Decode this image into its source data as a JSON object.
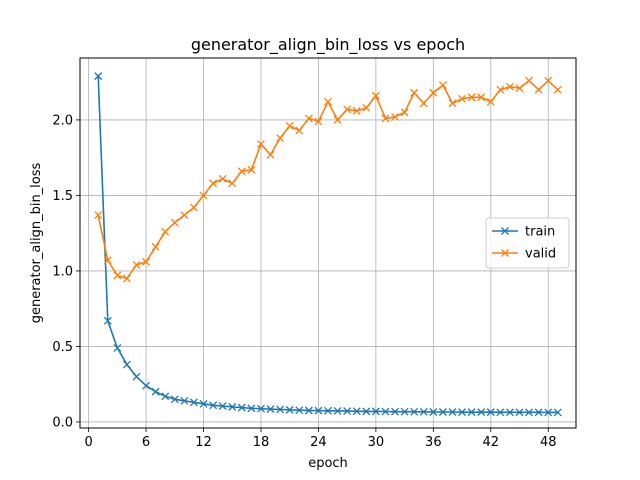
{
  "chart_data": {
    "type": "line",
    "title": "generator_align_bin_loss vs epoch",
    "xlabel": "epoch",
    "ylabel": "generator_align_bin_loss",
    "xlim": [
      -0.9,
      50.9
    ],
    "ylim": [
      -0.04,
      2.41
    ],
    "xticks": [
      0,
      6,
      12,
      18,
      24,
      30,
      36,
      42,
      48
    ],
    "yticks": [
      0.0,
      0.5,
      1.0,
      1.5,
      2.0
    ],
    "ytick_labels": [
      "0.0",
      "0.5",
      "1.0",
      "1.5",
      "2.0"
    ],
    "grid": true,
    "legend_position": "center-right",
    "x": [
      1,
      2,
      3,
      4,
      5,
      6,
      7,
      8,
      9,
      10,
      11,
      12,
      13,
      14,
      15,
      16,
      17,
      18,
      19,
      20,
      21,
      22,
      23,
      24,
      25,
      26,
      27,
      28,
      29,
      30,
      31,
      32,
      33,
      34,
      35,
      36,
      37,
      38,
      39,
      40,
      41,
      42,
      43,
      44,
      45,
      46,
      47,
      48,
      49
    ],
    "series": [
      {
        "name": "train",
        "color": "#1f77b4",
        "marker": "x",
        "values": [
          2.29,
          0.67,
          0.49,
          0.38,
          0.3,
          0.24,
          0.2,
          0.17,
          0.15,
          0.14,
          0.13,
          0.12,
          0.11,
          0.105,
          0.1,
          0.095,
          0.09,
          0.088,
          0.085,
          0.083,
          0.08,
          0.078,
          0.076,
          0.075,
          0.074,
          0.073,
          0.072,
          0.071,
          0.07,
          0.07,
          0.069,
          0.068,
          0.068,
          0.067,
          0.067,
          0.066,
          0.066,
          0.066,
          0.065,
          0.065,
          0.065,
          0.065,
          0.064,
          0.064,
          0.064,
          0.064,
          0.064,
          0.063,
          0.063
        ]
      },
      {
        "name": "valid",
        "color": "#ff7f0e",
        "marker": "x",
        "values": [
          1.37,
          1.07,
          0.97,
          0.95,
          1.04,
          1.06,
          1.16,
          1.26,
          1.32,
          1.37,
          1.42,
          1.5,
          1.58,
          1.61,
          1.58,
          1.66,
          1.67,
          1.84,
          1.77,
          1.88,
          1.96,
          1.93,
          2.01,
          1.99,
          2.12,
          2.0,
          2.07,
          2.06,
          2.08,
          2.16,
          2.01,
          2.02,
          2.05,
          2.18,
          2.11,
          2.18,
          2.23,
          2.11,
          2.14,
          2.15,
          2.15,
          2.12,
          2.2,
          2.22,
          2.21,
          2.26,
          2.2,
          2.26,
          2.2
        ]
      }
    ]
  }
}
